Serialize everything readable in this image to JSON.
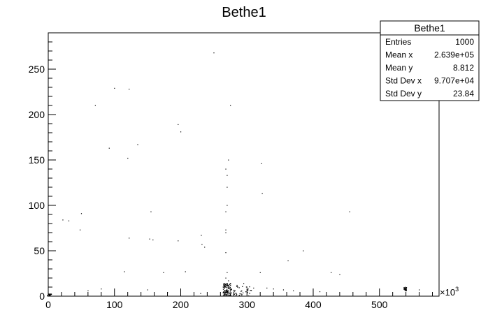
{
  "chart_data": {
    "type": "scatter",
    "title": "Bethe1",
    "xlabel": "",
    "ylabel": "",
    "xlim": [
      0,
      590
    ],
    "ylim": [
      0,
      290
    ],
    "x_multiplier": "×10",
    "x_multiplier_exp": "3",
    "x_ticks": [
      0,
      100,
      200,
      300,
      400,
      500
    ],
    "y_ticks": [
      0,
      50,
      100,
      150,
      200,
      250
    ],
    "grid": false,
    "legend": "none",
    "stats": {
      "title": "Bethe1",
      "rows": [
        {
          "label": "Entries",
          "value": "1000"
        },
        {
          "label": "Mean x",
          "value": "2.639e+05"
        },
        {
          "label": "Mean y",
          "value": "8.812"
        },
        {
          "label": "Std Dev x",
          "value": "9.707e+04"
        },
        {
          "label": "Std Dev y",
          "value": "23.84"
        }
      ]
    },
    "points": [
      [
        250,
        268
      ],
      [
        100,
        229
      ],
      [
        122,
        228
      ],
      [
        71,
        210
      ],
      [
        275,
        210
      ],
      [
        196,
        189
      ],
      [
        200,
        181
      ],
      [
        135,
        167
      ],
      [
        92,
        163
      ],
      [
        120,
        152
      ],
      [
        272,
        150
      ],
      [
        322,
        146
      ],
      [
        268,
        140
      ],
      [
        270,
        133
      ],
      [
        270,
        120
      ],
      [
        323,
        113
      ],
      [
        270,
        100
      ],
      [
        268,
        93
      ],
      [
        155,
        93
      ],
      [
        50,
        91
      ],
      [
        455,
        93
      ],
      [
        22,
        84
      ],
      [
        31,
        83
      ],
      [
        48,
        73
      ],
      [
        268,
        73
      ],
      [
        268,
        70
      ],
      [
        231,
        67
      ],
      [
        122,
        64
      ],
      [
        153,
        63
      ],
      [
        158,
        62
      ],
      [
        196,
        61
      ],
      [
        232,
        57
      ],
      [
        236,
        54
      ],
      [
        385,
        50
      ],
      [
        268,
        48
      ],
      [
        362,
        39
      ],
      [
        115,
        27
      ],
      [
        174,
        26
      ],
      [
        207,
        27
      ],
      [
        270,
        26
      ],
      [
        320,
        26
      ],
      [
        427,
        26
      ],
      [
        440,
        24
      ],
      [
        268,
        20
      ],
      [
        272,
        17
      ],
      [
        275,
        14
      ],
      [
        285,
        12
      ],
      [
        295,
        14
      ],
      [
        270,
        12
      ],
      [
        300,
        10
      ],
      [
        310,
        9
      ],
      [
        330,
        9
      ],
      [
        340,
        8
      ],
      [
        355,
        7
      ],
      [
        370,
        6
      ],
      [
        60,
        6
      ],
      [
        80,
        8
      ],
      [
        150,
        7
      ],
      [
        410,
        5
      ],
      [
        560,
        7
      ],
      [
        180,
        4
      ],
      [
        230,
        3
      ]
    ],
    "clusters": [
      {
        "x": 270,
        "y": 6,
        "count": 120,
        "dx": 6,
        "dy": 8
      },
      {
        "x": 290,
        "y": 5,
        "count": 40,
        "dx": 18,
        "dy": 6
      },
      {
        "x": 2,
        "y": 1,
        "count": 30,
        "dx": 3,
        "dy": 1.5
      },
      {
        "x": 539,
        "y": 8,
        "count": 25,
        "dx": 2,
        "dy": 2.5
      }
    ]
  }
}
